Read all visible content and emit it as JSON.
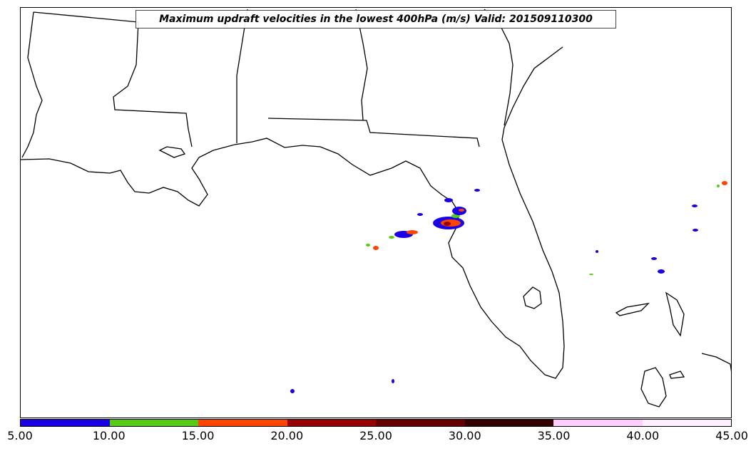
{
  "title": "Maximum updraft velocities in the lowest 400hPa (m/s) Valid: 201509110300",
  "colorbar": {
    "ticks": [
      "5.00",
      "10.00",
      "15.00",
      "20.00",
      "25.00",
      "30.00",
      "35.00",
      "40.00",
      "45.00"
    ],
    "colors": [
      "#1a00e6",
      "#55cc11",
      "#ff4400",
      "#990000",
      "#660000",
      "#330000",
      "#ffccff",
      "#ffeeff"
    ]
  },
  "region": "Southeastern United States / Gulf of Mexico",
  "updraft_cells": [
    {
      "area": "northwest Florida coast",
      "level": "10-30 m/s"
    },
    {
      "area": "offshore Gulf near Big Bend",
      "level": "5-20 m/s"
    },
    {
      "area": "Atlantic east of Florida",
      "level": "5-20 m/s"
    },
    {
      "area": "south Gulf of Mexico",
      "level": "5-10 m/s"
    }
  ]
}
